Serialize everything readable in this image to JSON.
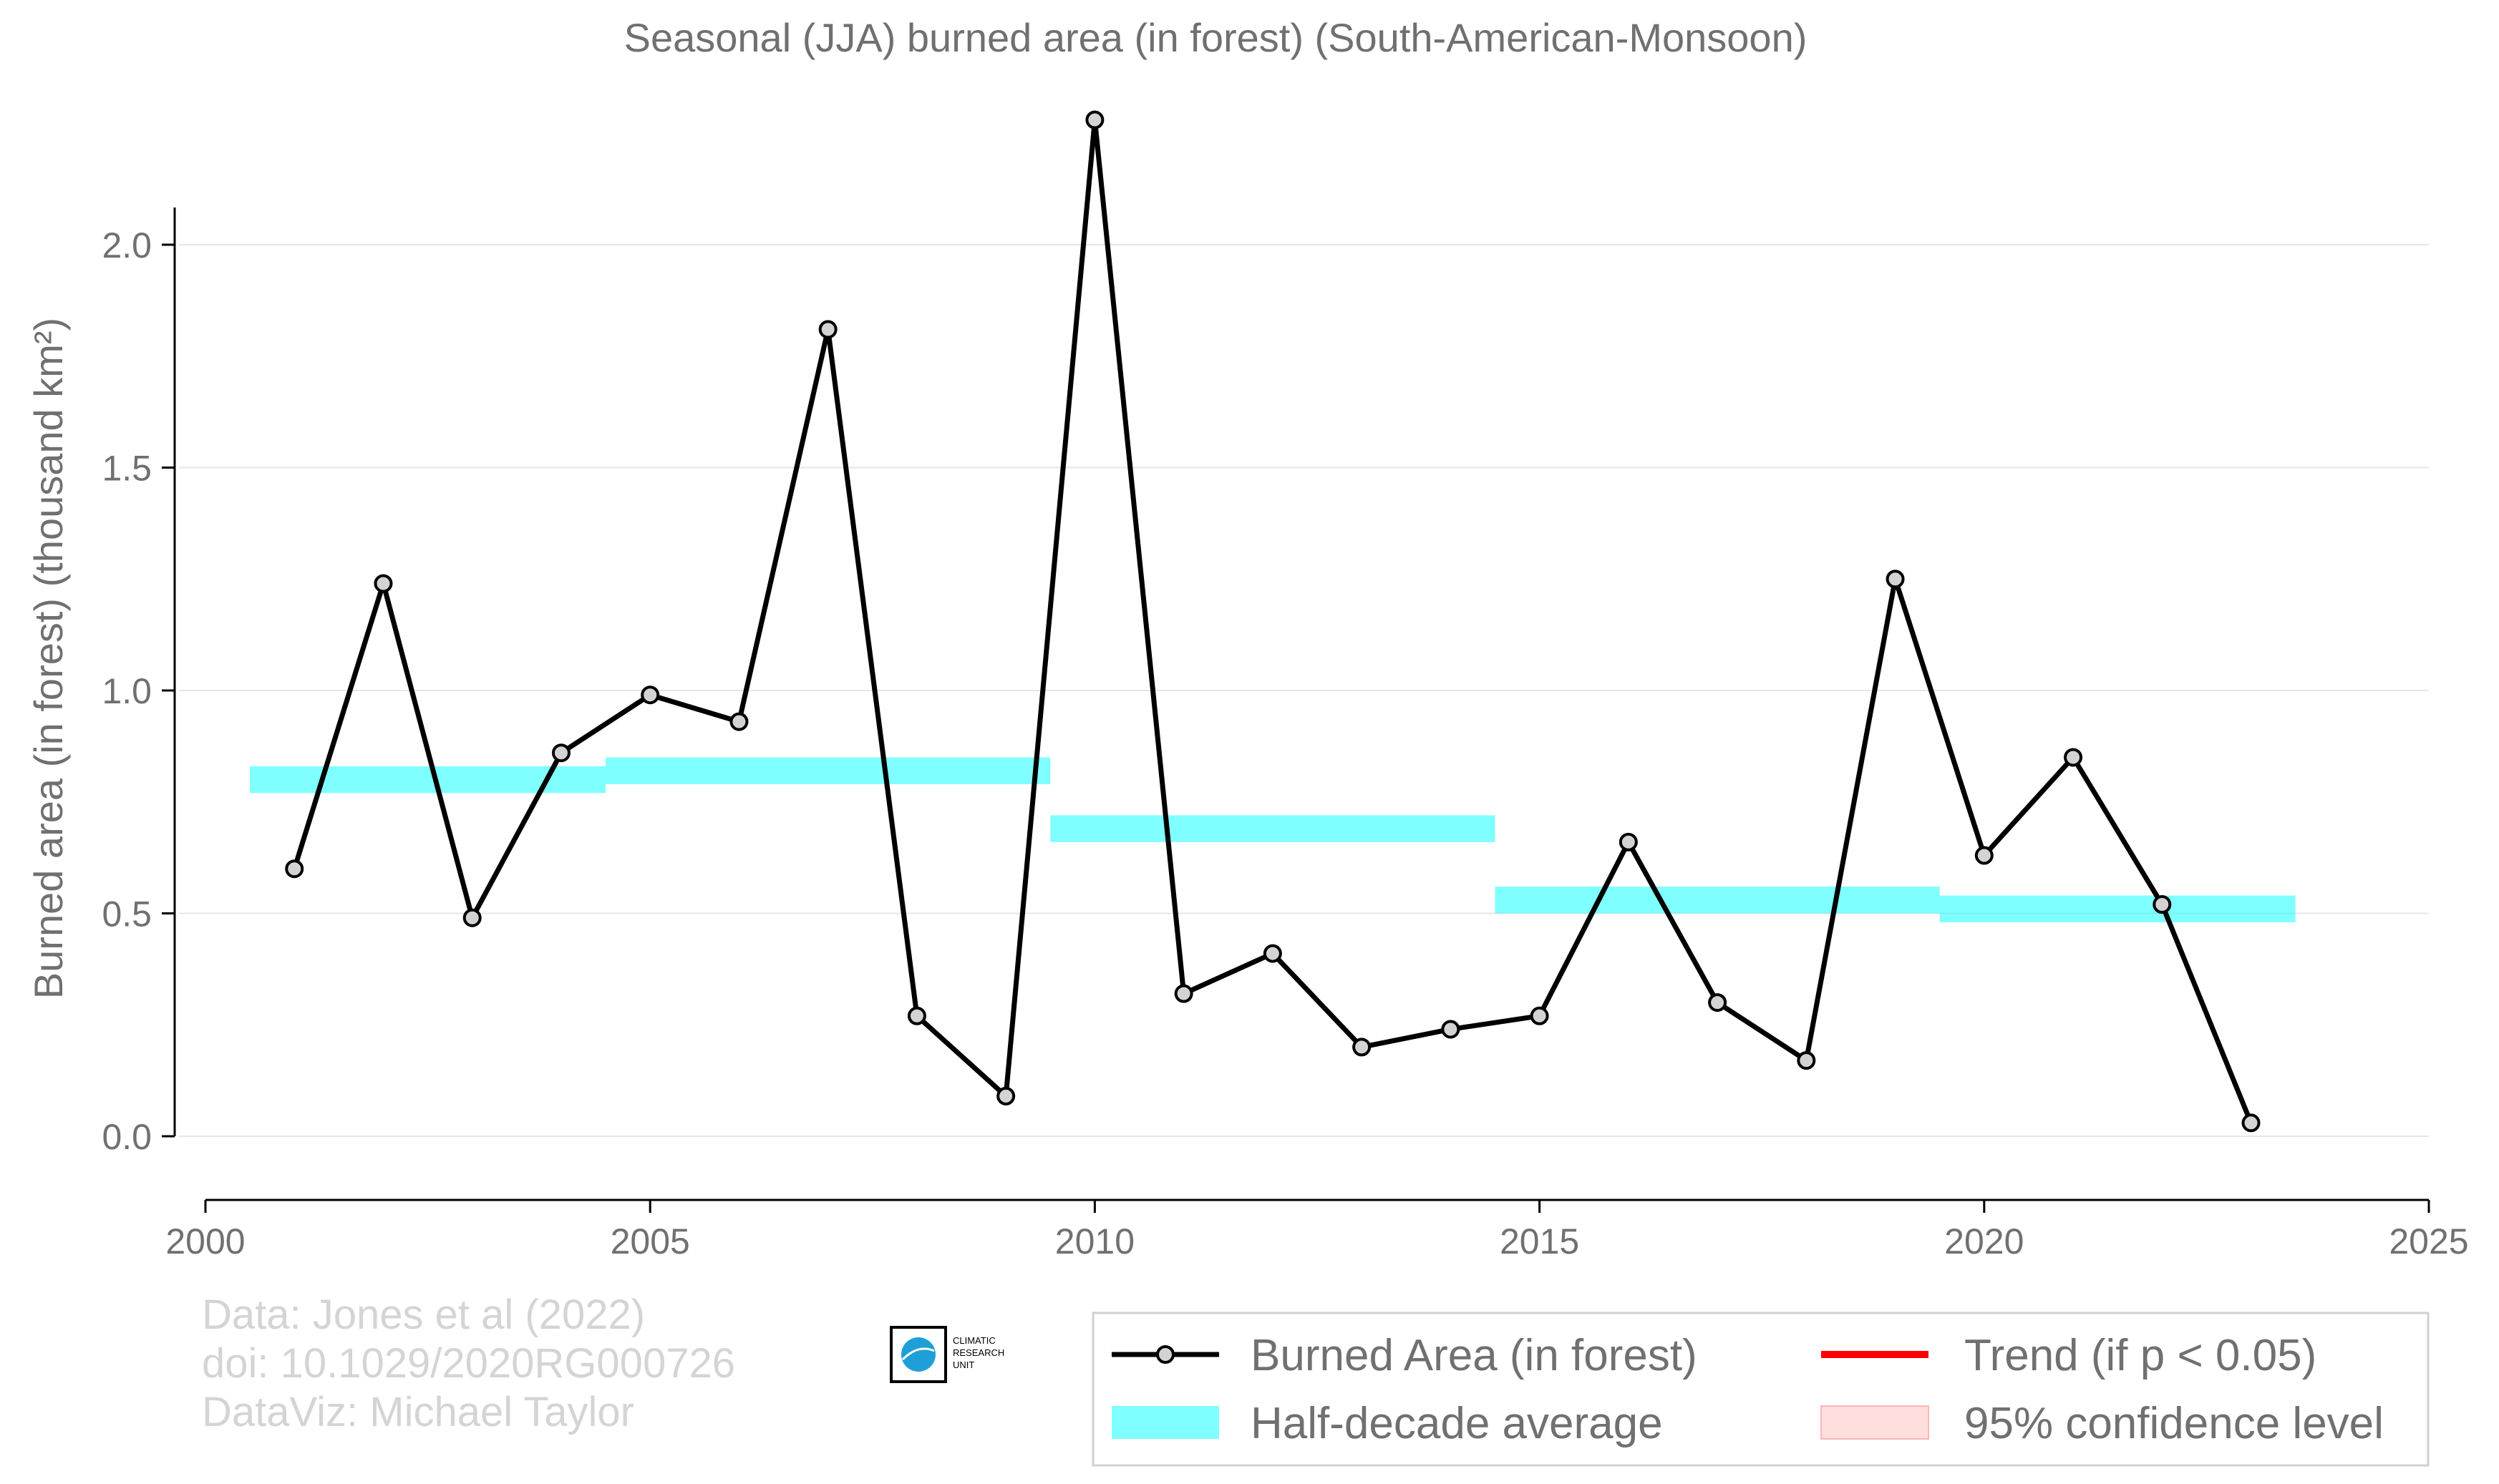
{
  "chart_data": {
    "type": "line",
    "title": "Seasonal (JJA) burned area (in forest) (South-American-Monsoon)",
    "ylabel": "Burned area (in forest) (thousand km²)",
    "xlabel": "",
    "xlim": [
      2000,
      2025
    ],
    "ylim": [
      -0.1,
      2.3
    ],
    "x_ticks": [
      2000,
      2005,
      2010,
      2015,
      2020,
      2025
    ],
    "x_tick_labels": [
      "2000",
      "2005",
      "2010",
      "2015",
      "2020",
      "2025"
    ],
    "y_ticks": [
      0.0,
      0.5,
      1.0,
      1.5,
      2.0
    ],
    "y_tick_labels": [
      "0.0",
      "0.5",
      "1.0",
      "1.5",
      "2.0"
    ],
    "grid": "horizontal",
    "series": [
      {
        "name": "Burned Area (in forest)",
        "type": "line-with-markers",
        "color": "#000000",
        "marker_fill": "#d3d3d3",
        "x": [
          2001,
          2002,
          2003,
          2004,
          2005,
          2006,
          2007,
          2008,
          2009,
          2010,
          2011,
          2012,
          2013,
          2014,
          2015,
          2016,
          2017,
          2018,
          2019,
          2020,
          2021,
          2022,
          2023
        ],
        "y": [
          0.6,
          1.24,
          0.49,
          0.86,
          0.99,
          0.93,
          1.81,
          0.27,
          0.09,
          2.28,
          0.32,
          0.41,
          0.2,
          0.24,
          0.27,
          0.66,
          0.3,
          0.17,
          1.25,
          0.63,
          0.85,
          0.52,
          0.03
        ]
      },
      {
        "name": "Half-decade average",
        "type": "step-band",
        "color": "#00ffff",
        "opacity": 0.5,
        "band_halfwidth": 0.03,
        "segments": [
          {
            "x_start": 2000.5,
            "x_end": 2004.5,
            "y": 0.8
          },
          {
            "x_start": 2004.5,
            "x_end": 2009.5,
            "y": 0.82
          },
          {
            "x_start": 2009.5,
            "x_end": 2014.5,
            "y": 0.69
          },
          {
            "x_start": 2014.5,
            "x_end": 2019.5,
            "y": 0.53
          },
          {
            "x_start": 2019.5,
            "x_end": 2023.5,
            "y": 0.51
          }
        ]
      }
    ],
    "legend": {
      "position": "bottom-right",
      "entries": [
        {
          "label": "Burned Area (in forest)",
          "symbol": "line-marker",
          "color": "#000000"
        },
        {
          "label": "Half-decade average",
          "symbol": "band",
          "color": "#00ffff"
        },
        {
          "label": "Trend (if p < 0.05)",
          "symbol": "line",
          "color": "#ff0000"
        },
        {
          "label": "95% confidence level",
          "symbol": "band",
          "color": "#ffb6b6"
        }
      ]
    }
  },
  "credits": {
    "line1": "Data: Jones et al (2022)",
    "line2": "doi: 10.1029/2020RG000726",
    "line3": "DataViz: Michael Taylor"
  },
  "logo": {
    "line1": "CLIMATIC",
    "line2": "RESEARCH",
    "line3": "UNIT"
  }
}
